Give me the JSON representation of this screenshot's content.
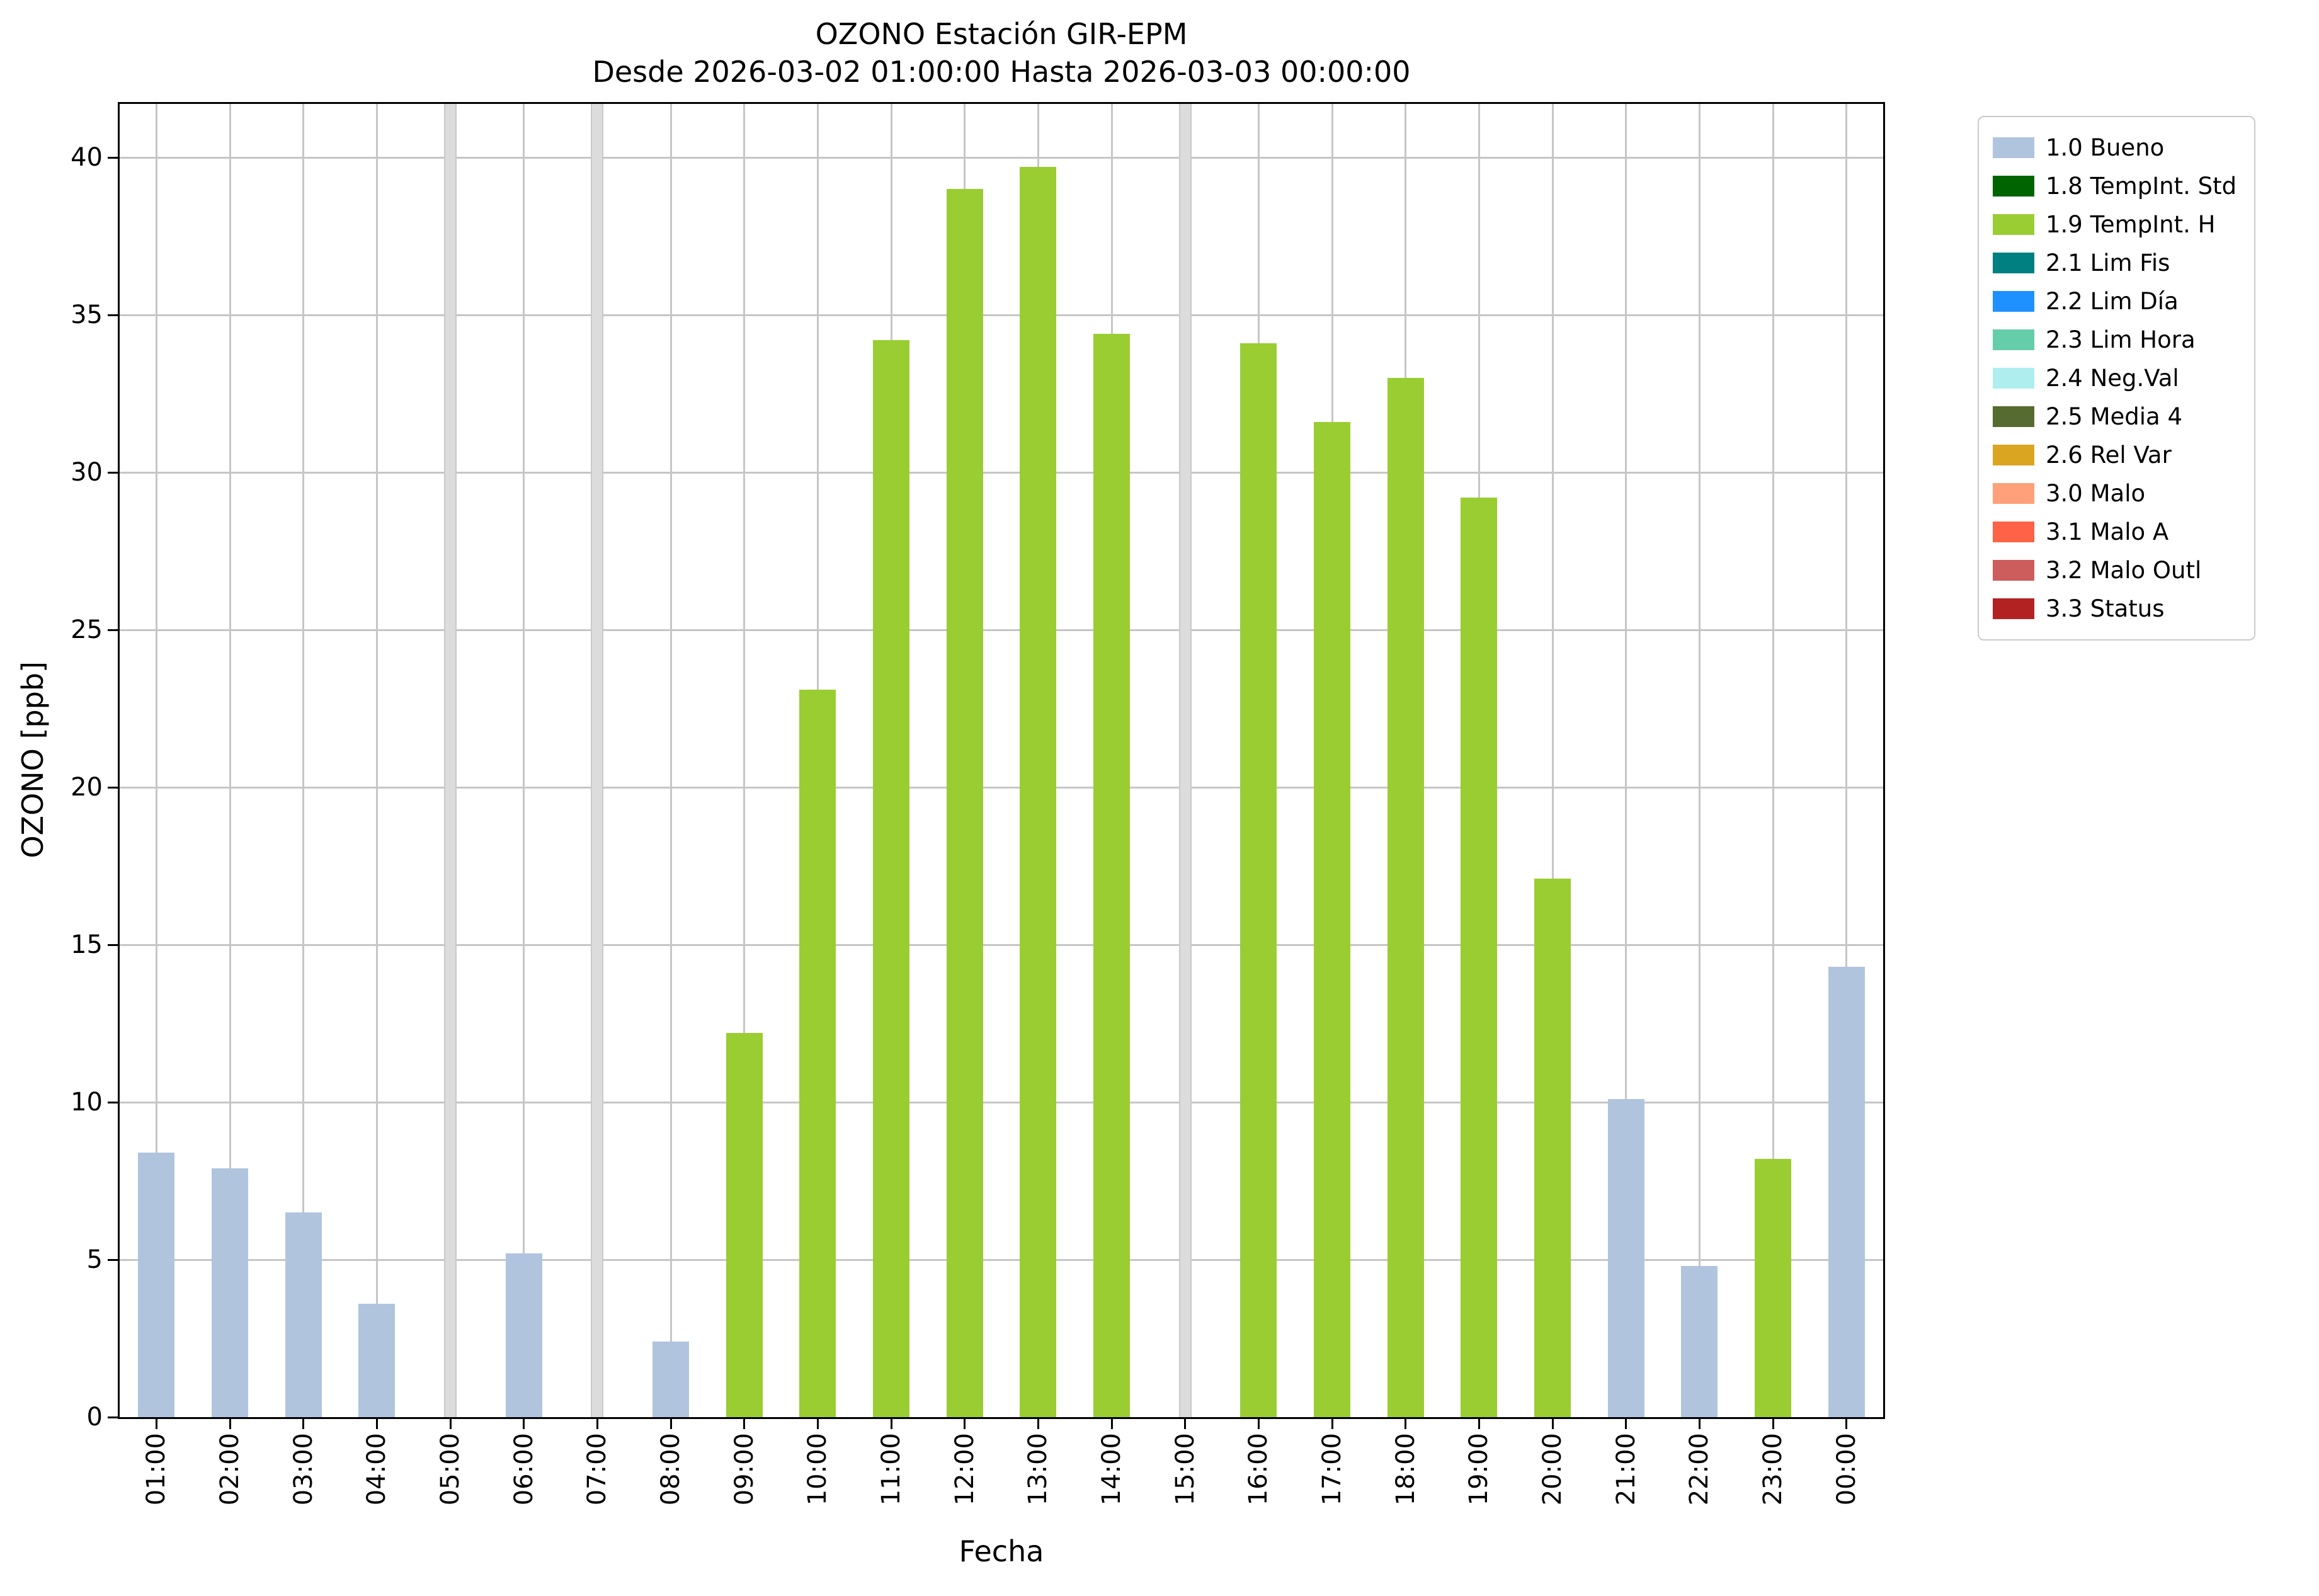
{
  "chart_data": {
    "type": "bar",
    "title": "OZONO Estación GIR-EPM",
    "subtitle": "Desde 2026-03-02 01:00:00 Hasta 2026-03-03 00:00:00",
    "xlabel": "Fecha",
    "ylabel": "OZONO [ppb]",
    "ylim": [
      0,
      41.7
    ],
    "yticks": [
      0,
      5,
      10,
      15,
      20,
      25,
      30,
      35,
      40
    ],
    "grid": true,
    "legend_position": "outside upper right",
    "categories": [
      "01:00",
      "02:00",
      "03:00",
      "04:00",
      "05:00",
      "06:00",
      "07:00",
      "08:00",
      "09:00",
      "10:00",
      "11:00",
      "12:00",
      "13:00",
      "14:00",
      "15:00",
      "16:00",
      "17:00",
      "18:00",
      "19:00",
      "20:00",
      "21:00",
      "22:00",
      "23:00",
      "00:00"
    ],
    "values": [
      8.4,
      7.9,
      6.5,
      3.6,
      null,
      5.2,
      null,
      2.4,
      12.2,
      23.1,
      34.2,
      39.0,
      39.7,
      34.4,
      null,
      34.1,
      31.6,
      33.0,
      29.2,
      17.1,
      10.1,
      4.8,
      8.2,
      14.3
    ],
    "bar_flags": [
      "bueno",
      "bueno",
      "bueno",
      "bueno",
      "missing",
      "bueno",
      "missing",
      "bueno",
      "tempint_h",
      "tempint_h",
      "tempint_h",
      "tempint_h",
      "tempint_h",
      "tempint_h",
      "missing",
      "tempint_h",
      "tempint_h",
      "tempint_h",
      "tempint_h",
      "tempint_h",
      "bueno",
      "bueno",
      "tempint_h",
      "bueno"
    ],
    "flag_colors": {
      "bueno": "#b0c4de",
      "tempint_h": "#9acd32",
      "missing": "#dcdcdc"
    },
    "missing_data_hours": [
      "05:00",
      "07:00",
      "15:00"
    ],
    "legend": [
      {
        "label": "1.0 Bueno",
        "color": "#b0c4de"
      },
      {
        "label": "1.8 TempInt. Std",
        "color": "#006400"
      },
      {
        "label": "1.9 TempInt. H",
        "color": "#9acd32"
      },
      {
        "label": "2.1 Lim Fis",
        "color": "#008080"
      },
      {
        "label": "2.2 Lim Día",
        "color": "#1e90ff"
      },
      {
        "label": "2.3 Lim Hora",
        "color": "#66cdaa"
      },
      {
        "label": "2.4 Neg.Val",
        "color": "#afeeee"
      },
      {
        "label": "2.5 Media 4",
        "color": "#556b2f"
      },
      {
        "label": "2.6 Rel Var",
        "color": "#daa520"
      },
      {
        "label": "3.0 Malo",
        "color": "#ffa07a"
      },
      {
        "label": "3.1 Malo A",
        "color": "#ff6347"
      },
      {
        "label": "3.2 Malo Outl",
        "color": "#cd5c5c"
      },
      {
        "label": "3.3 Status",
        "color": "#b22222"
      }
    ]
  }
}
